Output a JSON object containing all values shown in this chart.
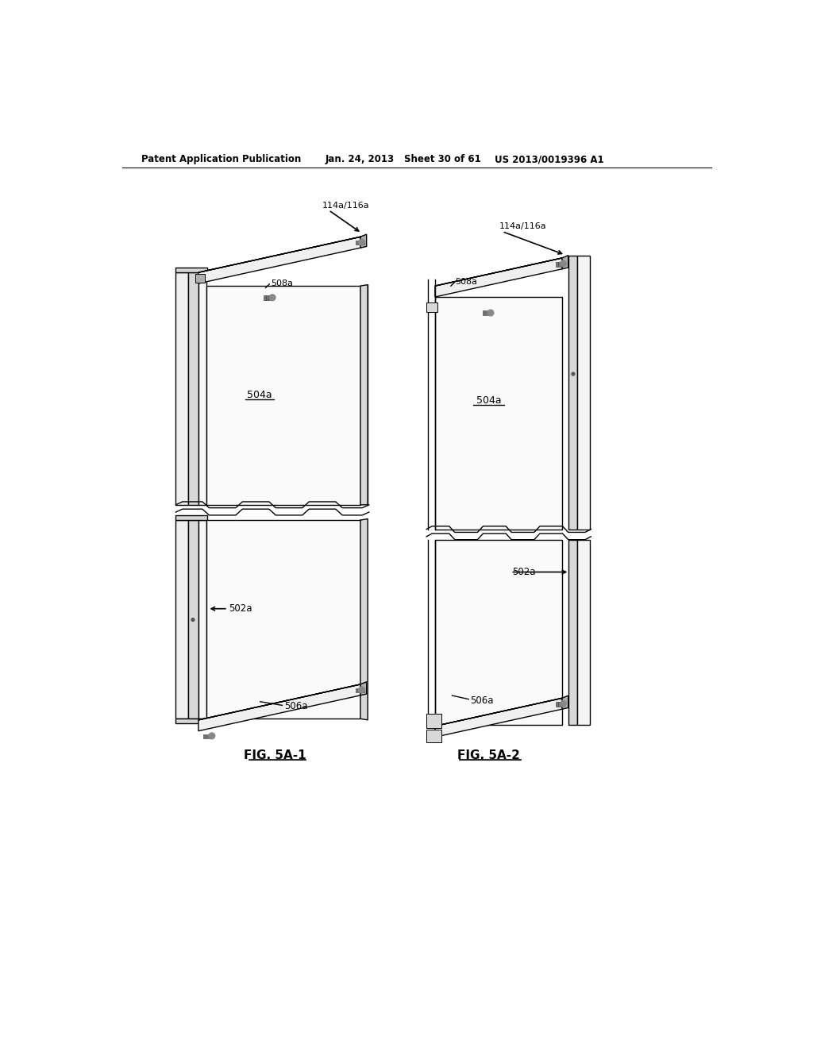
{
  "bg_color": "#ffffff",
  "header_text": "Patent Application Publication",
  "header_date": "Jan. 24, 2013",
  "header_sheet": "Sheet 30 of 61",
  "header_patent": "US 2013/0019396 A1",
  "fig1_label": "FIG. 5A-1",
  "fig2_label": "FIG. 5A-2",
  "lc": "#000000",
  "gray_light": "#f0f0f0",
  "gray_mid": "#d8d8d8",
  "gray_dark": "#b0b0b0",
  "gray_face": "#e8e8e8"
}
